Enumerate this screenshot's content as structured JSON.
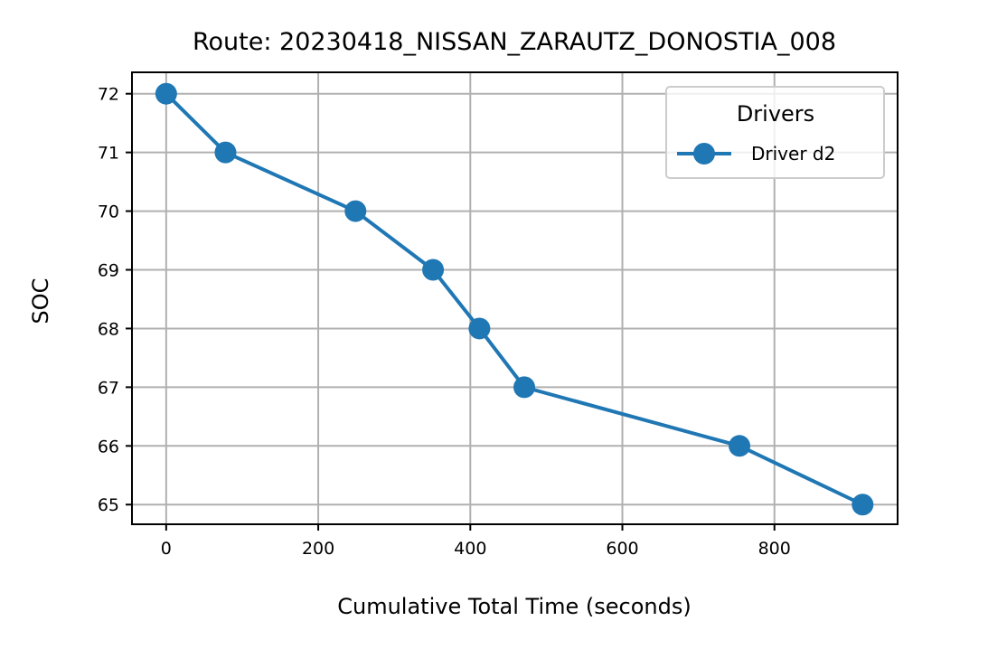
{
  "chart_data": {
    "type": "line",
    "title": "Route: 20230418_NISSAN_ZARAUTZ_DONOSTIA_008",
    "xlabel": "Cumulative Total Time (seconds)",
    "ylabel": "SOC",
    "xlim": [
      -45,
      962
    ],
    "ylim": [
      64.665,
      72.365
    ],
    "xticks": [
      0,
      200,
      400,
      600,
      800
    ],
    "yticks": [
      65,
      66,
      67,
      68,
      69,
      70,
      71,
      72
    ],
    "grid": true,
    "legend": {
      "title": "Drivers",
      "placement": "top-right"
    },
    "series": [
      {
        "name": "Driver d2",
        "color": "#1f77b4",
        "marker": "circle",
        "x": [
          0,
          78,
          249,
          351,
          412,
          471,
          754,
          916
        ],
        "y": [
          72,
          71,
          70,
          69,
          68,
          67,
          66,
          65
        ]
      }
    ]
  }
}
